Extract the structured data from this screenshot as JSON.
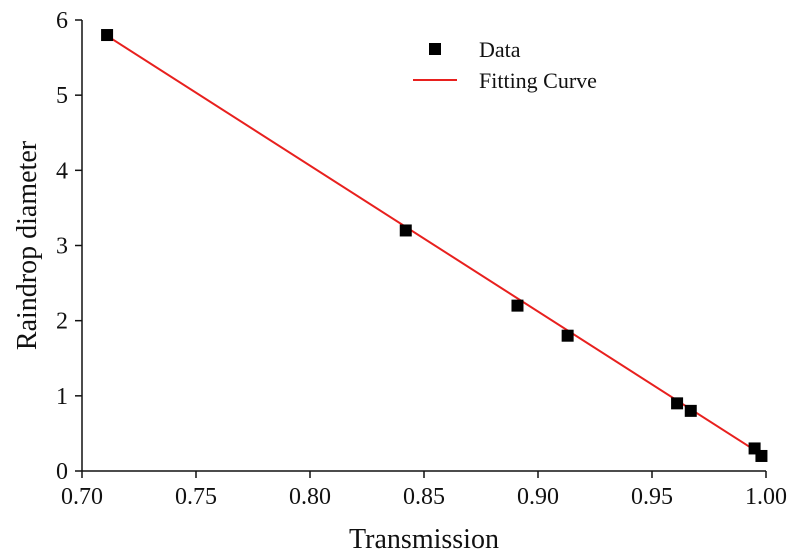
{
  "chart_data": {
    "type": "scatter",
    "xlabel": "Transmission",
    "ylabel": "Raindrop diameter",
    "xlim": [
      0.7,
      1.0
    ],
    "ylim": [
      0,
      6
    ],
    "xticks": [
      "0.70",
      "0.75",
      "0.80",
      "0.85",
      "0.90",
      "0.95",
      "1.00"
    ],
    "yticks": [
      "0",
      "1",
      "2",
      "3",
      "4",
      "5",
      "6"
    ],
    "grid": false,
    "legend_position": "top-right",
    "series": [
      {
        "name": "Data",
        "kind": "scatter",
        "marker": "square",
        "color": "#000000",
        "points": [
          {
            "x": 0.711,
            "y": 5.8
          },
          {
            "x": 0.842,
            "y": 3.2
          },
          {
            "x": 0.891,
            "y": 2.2
          },
          {
            "x": 0.913,
            "y": 1.8
          },
          {
            "x": 0.961,
            "y": 0.9
          },
          {
            "x": 0.967,
            "y": 0.8
          },
          {
            "x": 0.995,
            "y": 0.3
          },
          {
            "x": 0.998,
            "y": 0.2
          }
        ]
      },
      {
        "name": "Fitting Curve",
        "kind": "line",
        "color": "#e8201e",
        "points": [
          {
            "x": 0.711,
            "y": 5.79
          },
          {
            "x": 0.998,
            "y": 0.22
          }
        ]
      }
    ]
  }
}
